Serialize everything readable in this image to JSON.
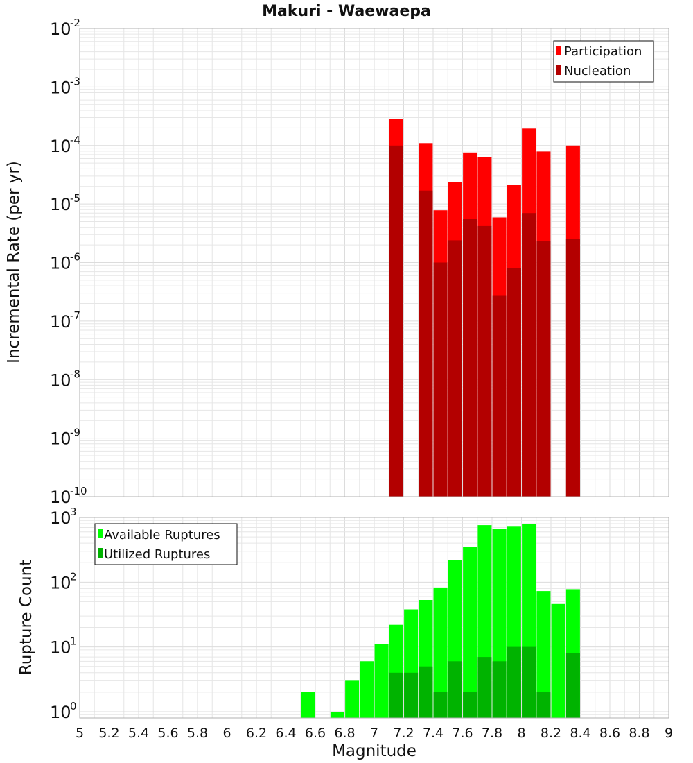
{
  "chart_data": [
    {
      "type": "bar",
      "panel": "rate",
      "title": "Makuri - Waewaepa",
      "xlabel": "Magnitude",
      "ylabel": "Incremental Rate (per yr)",
      "yscale": "log",
      "xlim": [
        5,
        9
      ],
      "ylim": [
        1e-10,
        0.01
      ],
      "y_ticks": [
        {
          "base": "10",
          "exp": "-10",
          "value": 1e-10
        },
        {
          "base": "10",
          "exp": "-9",
          "value": 1e-09
        },
        {
          "base": "10",
          "exp": "-8",
          "value": 1e-08
        },
        {
          "base": "10",
          "exp": "-7",
          "value": 1e-07
        },
        {
          "base": "10",
          "exp": "-6",
          "value": 1e-06
        },
        {
          "base": "10",
          "exp": "-5",
          "value": 1e-05
        },
        {
          "base": "10",
          "exp": "-4",
          "value": 0.0001
        },
        {
          "base": "10",
          "exp": "-3",
          "value": 0.001
        },
        {
          "base": "10",
          "exp": "-2",
          "value": 0.01
        }
      ],
      "legend_position": "top-right",
      "series": [
        {
          "name": "Participation",
          "color": "#ff0000",
          "x": [
            7.15,
            7.35,
            7.45,
            7.55,
            7.65,
            7.75,
            7.85,
            7.95,
            8.05,
            8.15,
            8.35
          ],
          "values": [
            0.00028,
            0.00011,
            7.8e-06,
            2.4e-05,
            7.6e-05,
            6.3e-05,
            5.9e-06,
            2.1e-05,
            0.000195,
            7.9e-05,
            0.0001
          ]
        },
        {
          "name": "Nucleation",
          "color": "#b30000",
          "x": [
            7.15,
            7.35,
            7.45,
            7.55,
            7.65,
            7.75,
            7.85,
            7.95,
            8.05,
            8.15,
            8.35
          ],
          "values": [
            0.0001,
            1.7e-05,
            1e-06,
            2.4e-06,
            5.5e-06,
            4.2e-06,
            2.7e-07,
            8e-07,
            7e-06,
            2.3e-06,
            2.5e-06
          ]
        }
      ]
    },
    {
      "type": "bar",
      "panel": "count",
      "xlabel": "Magnitude",
      "ylabel": "Rupture Count",
      "yscale": "log",
      "xlim": [
        5,
        9
      ],
      "ylim": [
        0.8,
        1000
      ],
      "y_ticks": [
        {
          "base": "10",
          "exp": "0",
          "value": 1
        },
        {
          "base": "10",
          "exp": "1",
          "value": 10
        },
        {
          "base": "10",
          "exp": "2",
          "value": 100
        },
        {
          "base": "10",
          "exp": "3",
          "value": 1000
        }
      ],
      "x_ticks": [
        "5",
        "5.2",
        "5.4",
        "5.6",
        "5.8",
        "6",
        "6.2",
        "6.4",
        "6.6",
        "6.8",
        "7",
        "7.2",
        "7.4",
        "7.6",
        "7.8",
        "8",
        "8.2",
        "8.4",
        "8.6",
        "8.8",
        "9"
      ],
      "legend_position": "top-left",
      "series": [
        {
          "name": "Available Ruptures",
          "color": "#00ff00",
          "x": [
            6.55,
            6.65,
            6.75,
            6.85,
            6.95,
            7.05,
            7.15,
            7.25,
            7.35,
            7.45,
            7.55,
            7.65,
            7.75,
            7.85,
            7.95,
            8.05,
            8.15,
            8.25,
            8.35
          ],
          "values": [
            2,
            0,
            1,
            3,
            6,
            11,
            22,
            38,
            53,
            83,
            220,
            350,
            760,
            660,
            720,
            790,
            73,
            46,
            78
          ]
        },
        {
          "name": "Utilized Ruptures",
          "color": "#00b300",
          "x": [
            7.15,
            7.25,
            7.35,
            7.45,
            7.55,
            7.65,
            7.75,
            7.85,
            7.95,
            8.05,
            8.15,
            8.35
          ],
          "values": [
            4,
            4,
            5,
            2,
            6,
            2,
            7,
            6,
            10,
            10,
            2,
            8
          ]
        }
      ]
    }
  ]
}
